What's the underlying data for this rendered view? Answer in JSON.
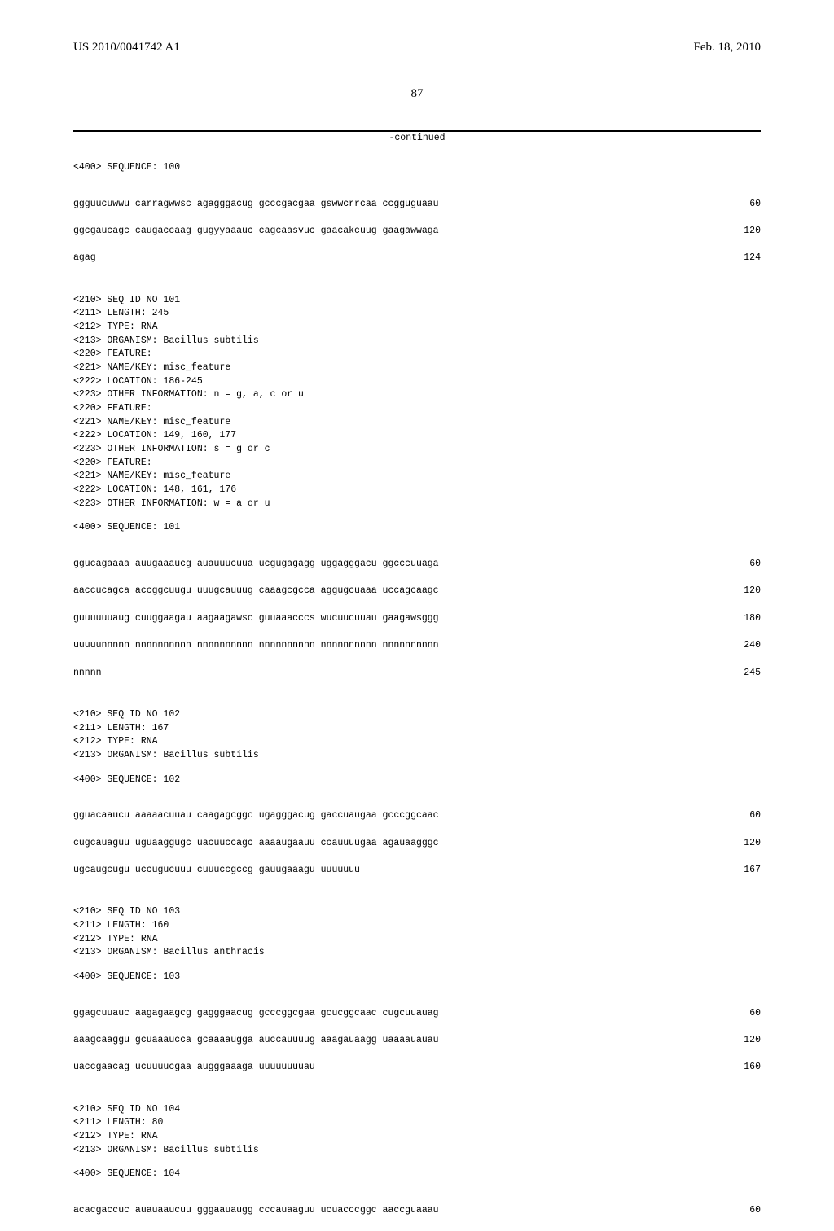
{
  "header": {
    "left": "US 2010/0041742 A1",
    "right": "Feb. 18, 2010"
  },
  "page_number": "87",
  "continued_label": "-continued",
  "seq100": {
    "label": "<400> SEQUENCE: 100",
    "lines": [
      {
        "s": "ggguucuwwu carragwwsc agagggacug gcccgacgaa gswwcrrcaa ccgguguaau",
        "n": "60"
      },
      {
        "s": "ggcgaucagc caugaccaag gugyyaaauc cagcaasvuc gaacakcuug gaagawwaga",
        "n": "120"
      },
      {
        "s": "agag",
        "n": "124"
      }
    ]
  },
  "meta101": "<210> SEQ ID NO 101\n<211> LENGTH: 245\n<212> TYPE: RNA\n<213> ORGANISM: Bacillus subtilis\n<220> FEATURE:\n<221> NAME/KEY: misc_feature\n<222> LOCATION: 186-245\n<223> OTHER INFORMATION: n = g, a, c or u\n<220> FEATURE:\n<221> NAME/KEY: misc_feature\n<222> LOCATION: 149, 160, 177\n<223> OTHER INFORMATION: s = g or c\n<220> FEATURE:\n<221> NAME/KEY: misc_feature\n<222> LOCATION: 148, 161, 176\n<223> OTHER INFORMATION: w = a or u",
  "seq101": {
    "label": "<400> SEQUENCE: 101",
    "lines": [
      {
        "s": "ggucagaaaa auugaaaucg auauuucuua ucgugagagg uggagggacu ggcccuuaga",
        "n": "60"
      },
      {
        "s": "aaccucagca accggcuugu uuugcauuug caaagcgcca aggugcuaaa uccagcaagc",
        "n": "120"
      },
      {
        "s": "guuuuuuaug cuuggaagau aagaagawsc guuaaacccs wucuucuuau gaagawsggg",
        "n": "180"
      },
      {
        "s": "uuuuunnnnn nnnnnnnnnn nnnnnnnnnn nnnnnnnnnn nnnnnnnnnn nnnnnnnnnn",
        "n": "240"
      },
      {
        "s": "nnnnn",
        "n": "245"
      }
    ]
  },
  "meta102": "<210> SEQ ID NO 102\n<211> LENGTH: 167\n<212> TYPE: RNA\n<213> ORGANISM: Bacillus subtilis",
  "seq102": {
    "label": "<400> SEQUENCE: 102",
    "lines": [
      {
        "s": "gguacaaucu aaaaacuuau caagagcggc ugagggacug gaccuaugaa gcccggcaac",
        "n": "60"
      },
      {
        "s": "cugcauaguu uguaaggugc uacuuccagc aaaaugaauu ccauuuugaa agauaagggc",
        "n": "120"
      },
      {
        "s": "ugcaugcugu uccugucuuu cuuuccgccg gauugaaagu uuuuuuu",
        "n": "167"
      }
    ]
  },
  "meta103": "<210> SEQ ID NO 103\n<211> LENGTH: 160\n<212> TYPE: RNA\n<213> ORGANISM: Bacillus anthracis",
  "seq103": {
    "label": "<400> SEQUENCE: 103",
    "lines": [
      {
        "s": "ggagcuuauc aagagaagcg gagggaacug gcccggcgaa gcucggcaac cugcuuauag",
        "n": "60"
      },
      {
        "s": "aaagcaaggu gcuaaaucca gcaaaaugga auccauuuug aaagauaagg uaaaauauau",
        "n": "120"
      },
      {
        "s": "uaccgaacag ucuuuucgaa augggaaaga uuuuuuuuau",
        "n": "160"
      }
    ]
  },
  "meta104": "<210> SEQ ID NO 104\n<211> LENGTH: 80\n<212> TYPE: RNA\n<213> ORGANISM: Bacillus subtilis",
  "seq104": {
    "label": "<400> SEQUENCE: 104",
    "lines": [
      {
        "s": "acacgaccuc auauaaucuu gggaauaugg cccauaaguu ucuacccggc aaccguaaau",
        "n": "60"
      }
    ]
  }
}
